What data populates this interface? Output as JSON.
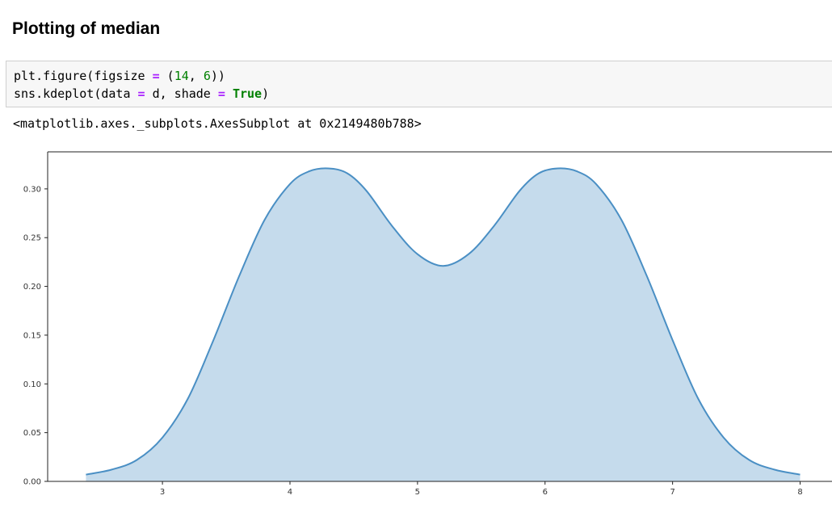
{
  "notebook": {
    "heading": "Plotting of median",
    "code_cell": {
      "line1": {
        "a": "plt.figure(figsize ",
        "op": "=",
        "b": " (",
        "n1": "14",
        "c": ", ",
        "n2": "6",
        "d": "))"
      },
      "line2": {
        "a": "sns.kdeplot(data ",
        "op1": "=",
        "b": " d, shade ",
        "op2": "=",
        "c": " ",
        "kw": "True",
        "d": ")"
      }
    },
    "output_text": "<matplotlib.axes._subplots.AxesSubplot at 0x2149480b788>"
  },
  "chart_data": {
    "type": "area",
    "title": "",
    "xlabel": "",
    "ylabel": "",
    "xlim": [
      2.1,
      8.25
    ],
    "ylim": [
      0,
      0.338
    ],
    "x_ticks": [
      3,
      4,
      5,
      6,
      7,
      8
    ],
    "x_tick_labels": [
      "3",
      "4",
      "5",
      "6",
      "7",
      "8"
    ],
    "y_ticks": [
      0.0,
      0.05,
      0.1,
      0.15,
      0.2,
      0.25,
      0.3
    ],
    "y_tick_labels": [
      "0.00",
      "0.05",
      "0.10",
      "0.15",
      "0.20",
      "0.25",
      "0.30"
    ],
    "grid": false,
    "line_color": "#4a8fc4",
    "fill_color": "#c5dbec",
    "series": [
      {
        "x": [
          2.4,
          2.6,
          2.8,
          3.0,
          3.2,
          3.4,
          3.6,
          3.8,
          4.0,
          4.15,
          4.3,
          4.45,
          4.6,
          4.8,
          5.0,
          5.2,
          5.4,
          5.6,
          5.8,
          5.95,
          6.1,
          6.25,
          6.4,
          6.6,
          6.8,
          7.0,
          7.2,
          7.4,
          7.6,
          7.8,
          8.0
        ],
        "y": [
          0.007,
          0.012,
          0.022,
          0.045,
          0.085,
          0.145,
          0.21,
          0.268,
          0.305,
          0.318,
          0.321,
          0.316,
          0.298,
          0.262,
          0.233,
          0.221,
          0.233,
          0.262,
          0.298,
          0.316,
          0.321,
          0.318,
          0.305,
          0.268,
          0.21,
          0.145,
          0.085,
          0.045,
          0.022,
          0.012,
          0.007
        ]
      }
    ]
  }
}
